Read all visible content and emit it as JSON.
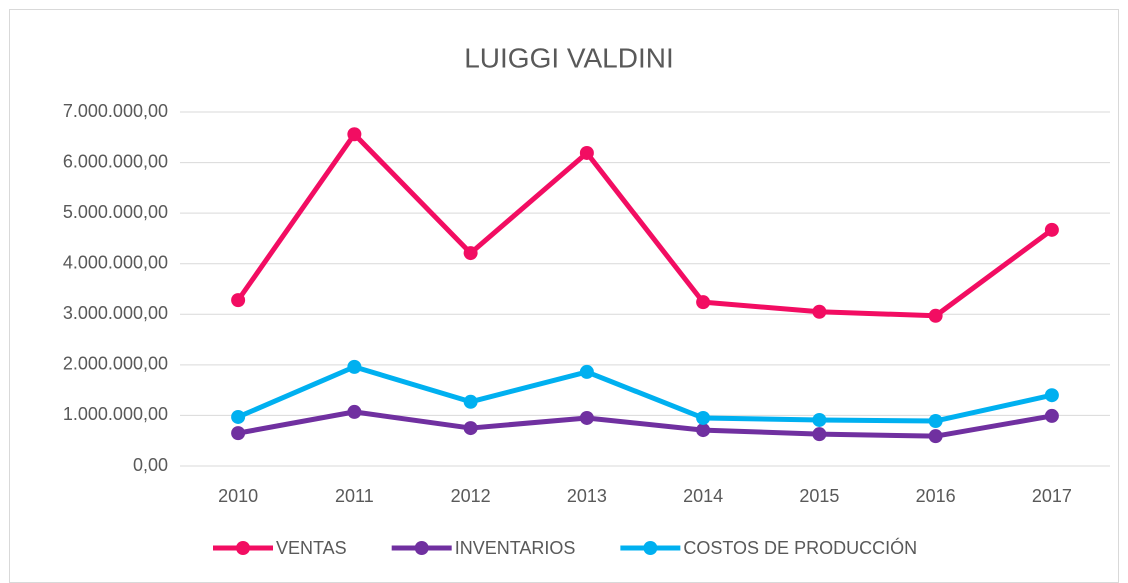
{
  "chart_data": {
    "type": "line",
    "title": "LUIGGI VALDINI",
    "categories": [
      "2010",
      "2011",
      "2012",
      "2013",
      "2014",
      "2015",
      "2016",
      "2017"
    ],
    "series": [
      {
        "name": "VENTAS",
        "color": "#f20d62",
        "values": [
          3280000,
          6560000,
          4210000,
          6190000,
          3240000,
          3050000,
          2970000,
          4670000
        ]
      },
      {
        "name": "INVENTARIOS",
        "color": "#7030a0",
        "values": [
          650000,
          1070000,
          750000,
          950000,
          710000,
          630000,
          590000,
          990000
        ]
      },
      {
        "name": "COSTOS DE PRODUCCIÓN",
        "color": "#00b0f0",
        "values": [
          970000,
          1960000,
          1270000,
          1860000,
          950000,
          910000,
          890000,
          1400000
        ]
      }
    ],
    "ylim": [
      0,
      7000000
    ],
    "yticks": [
      {
        "value": 0,
        "label": "0,00"
      },
      {
        "value": 1000000,
        "label": "1.000.000,00"
      },
      {
        "value": 2000000,
        "label": "2.000.000,00"
      },
      {
        "value": 3000000,
        "label": "3.000.000,00"
      },
      {
        "value": 4000000,
        "label": "4.000.000,00"
      },
      {
        "value": 5000000,
        "label": "5.000.000,00"
      },
      {
        "value": 6000000,
        "label": "6.000.000,00"
      },
      {
        "value": 7000000,
        "label": "7.000.000,00"
      }
    ],
    "grid": true,
    "legend": "bottom"
  }
}
